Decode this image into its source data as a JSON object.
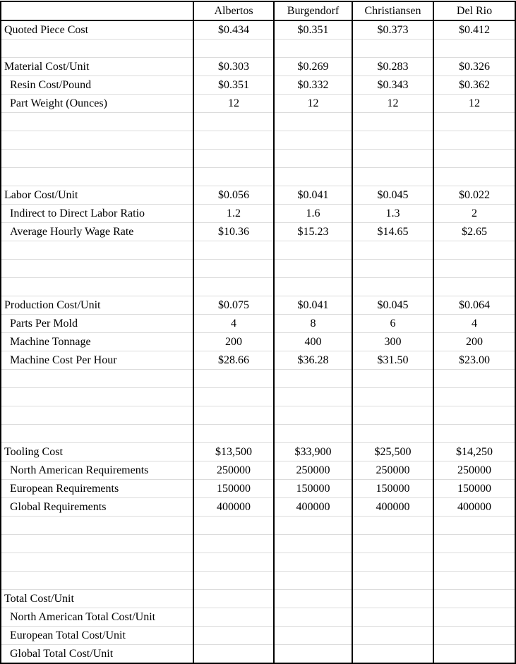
{
  "colors": {
    "background": "#ffffff",
    "text": "#000000",
    "section_border": "#000000",
    "gridline": "#dcdcdc"
  },
  "table": {
    "columns": [
      "",
      "Albertos",
      "Burgendorf",
      "Christiansen",
      "Del Rio"
    ],
    "rows": [
      {
        "label": "Quoted Piece Cost",
        "indent": false,
        "values": [
          "$0.434",
          "$0.351",
          "$0.373",
          "$0.412"
        ]
      },
      {
        "label": "",
        "indent": false,
        "values": [
          "",
          "",
          "",
          ""
        ]
      },
      {
        "label": "Material Cost/Unit",
        "indent": false,
        "values": [
          "$0.303",
          "$0.269",
          "$0.283",
          "$0.326"
        ]
      },
      {
        "label": "Resin Cost/Pound",
        "indent": true,
        "values": [
          "$0.351",
          "$0.332",
          "$0.343",
          "$0.362"
        ]
      },
      {
        "label": "Part Weight (Ounces)",
        "indent": true,
        "values": [
          "12",
          "12",
          "12",
          "12"
        ]
      },
      {
        "label": "",
        "indent": false,
        "values": [
          "",
          "",
          "",
          ""
        ]
      },
      {
        "label": "",
        "indent": false,
        "values": [
          "",
          "",
          "",
          ""
        ]
      },
      {
        "label": "",
        "indent": false,
        "values": [
          "",
          "",
          "",
          ""
        ]
      },
      {
        "label": "",
        "indent": false,
        "values": [
          "",
          "",
          "",
          ""
        ]
      },
      {
        "label": "Labor Cost/Unit",
        "indent": false,
        "values": [
          "$0.056",
          "$0.041",
          "$0.045",
          "$0.022"
        ]
      },
      {
        "label": "Indirect to Direct Labor Ratio",
        "indent": true,
        "values": [
          "1.2",
          "1.6",
          "1.3",
          "2"
        ]
      },
      {
        "label": "Average Hourly Wage Rate",
        "indent": true,
        "values": [
          "$10.36",
          "$15.23",
          "$14.65",
          "$2.65"
        ]
      },
      {
        "label": "",
        "indent": false,
        "values": [
          "",
          "",
          "",
          ""
        ]
      },
      {
        "label": "",
        "indent": false,
        "values": [
          "",
          "",
          "",
          ""
        ]
      },
      {
        "label": "",
        "indent": false,
        "values": [
          "",
          "",
          "",
          ""
        ]
      },
      {
        "label": "Production Cost/Unit",
        "indent": false,
        "values": [
          "$0.075",
          "$0.041",
          "$0.045",
          "$0.064"
        ]
      },
      {
        "label": "Parts Per Mold",
        "indent": true,
        "values": [
          "4",
          "8",
          "6",
          "4"
        ]
      },
      {
        "label": "Machine Tonnage",
        "indent": true,
        "values": [
          "200",
          "400",
          "300",
          "200"
        ]
      },
      {
        "label": "Machine Cost Per Hour",
        "indent": true,
        "values": [
          "$28.66",
          "$36.28",
          "$31.50",
          "$23.00"
        ]
      },
      {
        "label": "",
        "indent": false,
        "values": [
          "",
          "",
          "",
          ""
        ]
      },
      {
        "label": "",
        "indent": false,
        "values": [
          "",
          "",
          "",
          ""
        ]
      },
      {
        "label": "",
        "indent": false,
        "values": [
          "",
          "",
          "",
          ""
        ]
      },
      {
        "label": "",
        "indent": false,
        "values": [
          "",
          "",
          "",
          ""
        ]
      },
      {
        "label": "Tooling Cost",
        "indent": false,
        "values": [
          "$13,500",
          "$33,900",
          "$25,500",
          "$14,250"
        ]
      },
      {
        "label": "North American Requirements",
        "indent": true,
        "values": [
          "250000",
          "250000",
          "250000",
          "250000"
        ]
      },
      {
        "label": "European Requirements",
        "indent": true,
        "values": [
          "150000",
          "150000",
          "150000",
          "150000"
        ]
      },
      {
        "label": "Global Requirements",
        "indent": true,
        "values": [
          "400000",
          "400000",
          "400000",
          "400000"
        ]
      },
      {
        "label": "",
        "indent": false,
        "values": [
          "",
          "",
          "",
          ""
        ]
      },
      {
        "label": "",
        "indent": false,
        "values": [
          "",
          "",
          "",
          ""
        ]
      },
      {
        "label": "",
        "indent": false,
        "values": [
          "",
          "",
          "",
          ""
        ]
      },
      {
        "label": "",
        "indent": false,
        "values": [
          "",
          "",
          "",
          ""
        ]
      },
      {
        "label": "Total Cost/Unit",
        "indent": false,
        "values": [
          "",
          "",
          "",
          ""
        ]
      },
      {
        "label": "North American Total Cost/Unit",
        "indent": true,
        "values": [
          "",
          "",
          "",
          ""
        ]
      },
      {
        "label": "European Total Cost/Unit",
        "indent": true,
        "values": [
          "",
          "",
          "",
          ""
        ]
      },
      {
        "label": "Global Total Cost/Unit",
        "indent": true,
        "values": [
          "",
          "",
          "",
          ""
        ]
      }
    ]
  }
}
